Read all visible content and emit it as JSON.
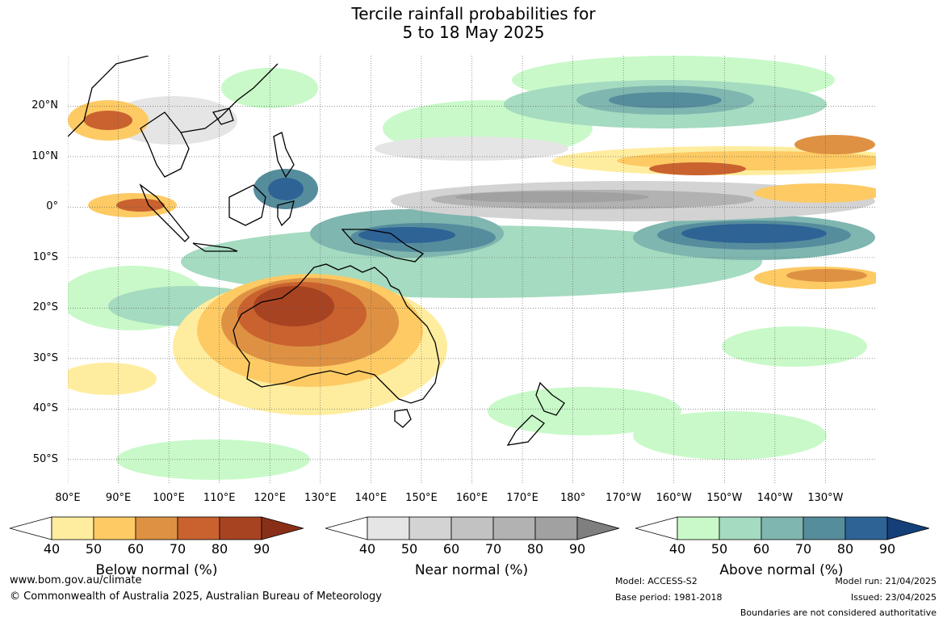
{
  "title": {
    "line1": "Tercile rainfall probabilities for",
    "line2": "5 to 18 May 2025"
  },
  "map": {
    "lon_range": [
      80,
      240
    ],
    "lat_range": [
      -55,
      30
    ],
    "lat_labels": [
      "20°N",
      "10°N",
      "0°",
      "10°S",
      "20°S",
      "30°S",
      "40°S",
      "50°S"
    ],
    "lon_labels": [
      "80°E",
      "90°E",
      "100°E",
      "110°E",
      "120°E",
      "130°E",
      "140°E",
      "150°E",
      "160°E",
      "170°E",
      "180°",
      "170°W",
      "160°W",
      "150°W",
      "140°W",
      "130°W"
    ]
  },
  "legends": [
    {
      "label": "Below normal (%)",
      "ticks": [
        "40",
        "50",
        "60",
        "70",
        "80",
        "90"
      ],
      "colors": [
        "#ffed9f",
        "#fdca64",
        "#de9143",
        "#c9622f",
        "#a84322",
        "#8a2f17"
      ]
    },
    {
      "label": "Near normal (%)",
      "ticks": [
        "40",
        "50",
        "60",
        "70",
        "80",
        "90"
      ],
      "colors": [
        "#e5e5e5",
        "#d3d3d3",
        "#c2c2c2",
        "#b2b2b2",
        "#a1a1a1",
        "#7f7f7f"
      ]
    },
    {
      "label": "Above normal (%)",
      "ticks": [
        "40",
        "50",
        "60",
        "70",
        "80",
        "90"
      ],
      "colors": [
        "#c9f9c9",
        "#a5dbc0",
        "#7fb6b0",
        "#568d9d",
        "#2e6396",
        "#143f78"
      ]
    }
  ],
  "footer": {
    "website": "www.bom.gov.au/climate",
    "copyright": "© Commonwealth of Australia 2025, Australian Bureau of Meteorology",
    "model": "Model: ACCESS-S2",
    "base_period": "Base period: 1981-2018",
    "model_run": "Model run: 21/04/2025",
    "issued": "Issued: 23/04/2025",
    "disclaimer": "Boundaries are not considered authoritative"
  }
}
